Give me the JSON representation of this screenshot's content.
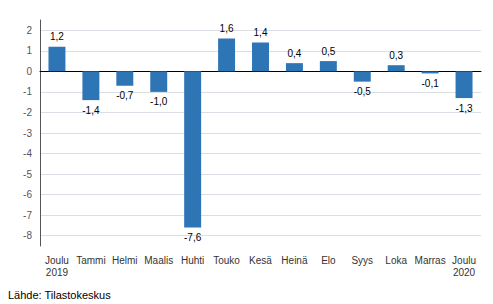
{
  "chart_data": {
    "type": "bar",
    "categories": [
      "Joulu\n2019",
      "Tammi",
      "Helmi",
      "Maalis",
      "Huhti",
      "Touko",
      "Kesä",
      "Heinä",
      "Elo",
      "Syys",
      "Loka",
      "Marras",
      "Joulu\n2020"
    ],
    "values": [
      1.2,
      -1.4,
      -0.7,
      -1.0,
      -7.6,
      1.6,
      1.4,
      0.4,
      0.5,
      -0.5,
      0.3,
      -0.1,
      -1.3
    ],
    "value_labels": [
      "1,2",
      "-1,4",
      "-0,7",
      "-1,0",
      "-7,6",
      "1,6",
      "1,4",
      "0,4",
      "0,5",
      "-0,5",
      "0,3",
      "-0,1",
      "-1,3"
    ],
    "data_labels": true,
    "color": "#2E75B6",
    "ylim": [
      -8.5,
      2.5
    ],
    "yticks": [
      -8,
      -7,
      -6,
      -5,
      -4,
      -3,
      -2,
      -1,
      0,
      1,
      2
    ],
    "grid": true,
    "annotations": [
      "Lähde: Tilastokeskus"
    ]
  }
}
